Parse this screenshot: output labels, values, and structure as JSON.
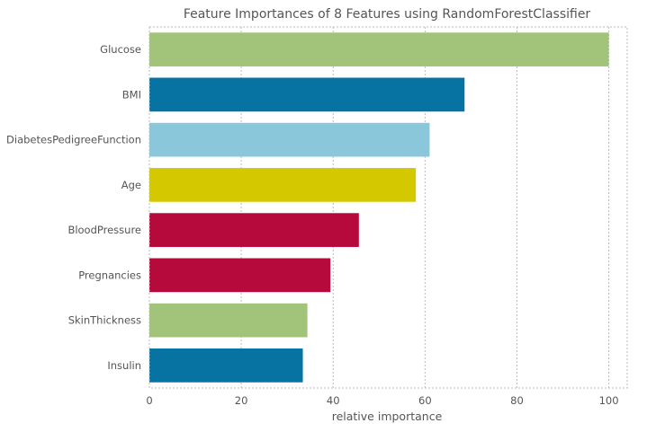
{
  "chart_data": {
    "type": "bar",
    "orientation": "horizontal",
    "title": "Feature Importances of 8 Features using RandomForestClassifier",
    "xlabel": "relative importance",
    "ylabel": "",
    "xlim": [
      0,
      104
    ],
    "xticks": [
      0,
      20,
      40,
      60,
      80,
      100
    ],
    "grid": true,
    "categories": [
      "Glucose",
      "BMI",
      "DiabetesPedigreeFunction",
      "Age",
      "BloodPressure",
      "Pregnancies",
      "SkinThickness",
      "Insulin"
    ],
    "values": [
      100,
      68.6,
      61,
      58,
      45.6,
      39.4,
      34.4,
      33.4
    ],
    "colors": [
      "#a1c47a",
      "#0673a3",
      "#8ac7db",
      "#d4c800",
      "#b60a3c",
      "#b60a3c",
      "#a1c47a",
      "#0673a3"
    ]
  }
}
